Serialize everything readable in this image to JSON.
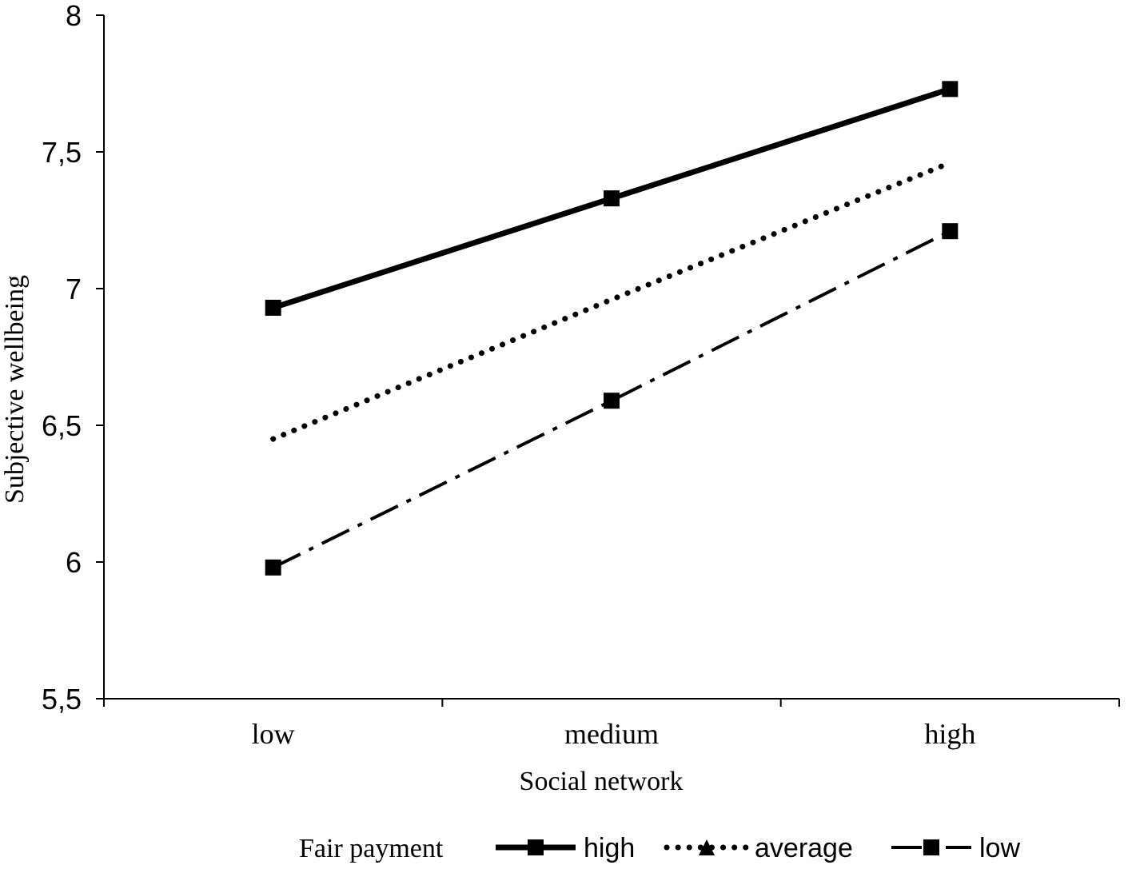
{
  "chart_data": {
    "type": "line",
    "title": "",
    "xlabel": "Social network",
    "ylabel": "Subjective wellbeing",
    "categories": [
      "low",
      "medium",
      "high"
    ],
    "ylim": [
      5.5,
      8
    ],
    "yticks": [
      "5,5",
      "6",
      "6,5",
      "7",
      "7,5",
      "8"
    ],
    "ytick_values": [
      5.5,
      6,
      6.5,
      7,
      7.5,
      8
    ],
    "grid": false,
    "legend": {
      "title": "Fair payment",
      "placement": "bottom"
    },
    "series": [
      {
        "name": "high",
        "values": [
          6.93,
          7.33,
          7.73
        ],
        "color": "#000000",
        "style": "solid",
        "marker": "square"
      },
      {
        "name": "average",
        "values": [
          6.45,
          6.96,
          7.46
        ],
        "color": "#000000",
        "style": "dotted",
        "marker": "triangle"
      },
      {
        "name": "low",
        "values": [
          5.98,
          6.59,
          7.21
        ],
        "color": "#000000",
        "style": "dashdot",
        "marker": "square"
      }
    ]
  }
}
